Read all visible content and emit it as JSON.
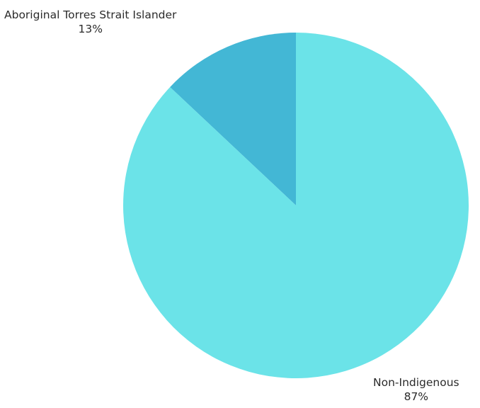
{
  "chart_data": {
    "type": "pie",
    "slices": [
      {
        "label": "Aboriginal Torres Strait Islander",
        "value": 13,
        "value_text": "13%",
        "color": "#43B7D5"
      },
      {
        "label": "Non-Indigenous",
        "value": 87,
        "value_text": "87%",
        "color": "#6BE3E8"
      }
    ]
  }
}
